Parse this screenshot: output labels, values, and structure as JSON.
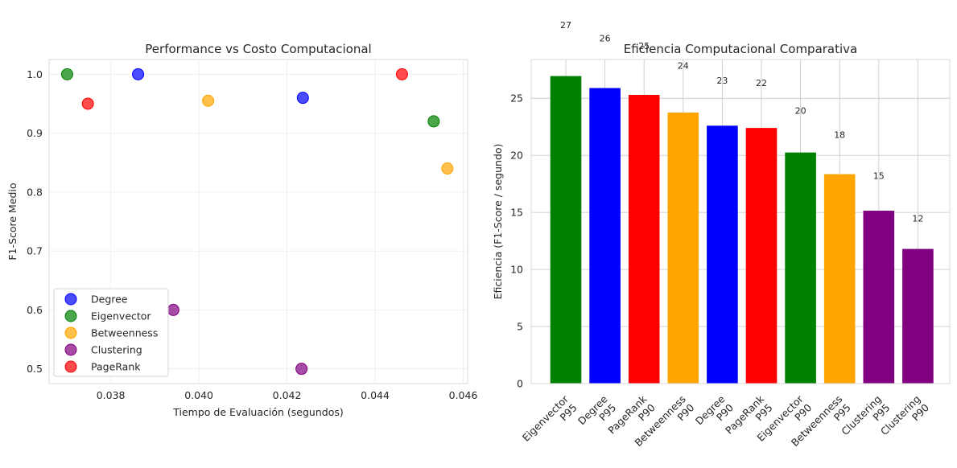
{
  "chart_data": [
    {
      "type": "scatter",
      "title": "Performance vs Costo Computacional",
      "xlabel": "Tiempo de Evaluación (segundos)",
      "ylabel": "F1-Score Medio",
      "xlim": [
        0.0366,
        0.0461
      ],
      "ylim": [
        0.475,
        1.025
      ],
      "xticks": [
        "0.038",
        "0.040",
        "0.042",
        "0.044",
        "0.046"
      ],
      "yticks": [
        "0.5",
        "0.6",
        "0.7",
        "0.8",
        "0.9",
        "1.0"
      ],
      "grid": true,
      "legend_position": "bottom-left",
      "series": [
        {
          "name": "Degree",
          "color": "#0000ff",
          "points": [
            [
              0.03862,
              1.0
            ],
            [
              0.04236,
              0.96
            ]
          ]
        },
        {
          "name": "Eigenvector",
          "color": "#008000",
          "points": [
            [
              0.03701,
              1.0
            ],
            [
              0.04533,
              0.92
            ]
          ]
        },
        {
          "name": "Betweenness",
          "color": "#ffa500",
          "points": [
            [
              0.04021,
              0.955
            ],
            [
              0.04564,
              0.84
            ]
          ]
        },
        {
          "name": "Clustering",
          "color": "#800080",
          "points": [
            [
              0.03942,
              0.6
            ],
            [
              0.04233,
              0.5
            ]
          ]
        },
        {
          "name": "PageRank",
          "color": "#ff0000",
          "points": [
            [
              0.03748,
              0.95
            ],
            [
              0.04461,
              1.0
            ]
          ]
        }
      ]
    },
    {
      "type": "bar",
      "title": "Eficiencia Computacional Comparativa",
      "xlabel": "",
      "ylabel": "Eficiencia (F1-Score / segundo)",
      "ylim": [
        0,
        28.4
      ],
      "yticks": [
        "0",
        "5",
        "10",
        "15",
        "20",
        "25"
      ],
      "grid": true,
      "categories": [
        [
          "Eigenvector",
          "P95"
        ],
        [
          "Degree",
          "P95"
        ],
        [
          "PageRank",
          "P90"
        ],
        [
          "Betweenness",
          "P90"
        ],
        [
          "Degree",
          "P90"
        ],
        [
          "PageRank",
          "P95"
        ],
        [
          "Eigenvector",
          "P90"
        ],
        [
          "Betweenness",
          "P95"
        ],
        [
          "Clustering",
          "P95"
        ],
        [
          "Clustering",
          "P90"
        ]
      ],
      "values": [
        26.95,
        25.9,
        25.3,
        23.75,
        22.6,
        22.4,
        20.25,
        18.35,
        15.15,
        11.8
      ],
      "labels": [
        "27",
        "26",
        "25",
        "24",
        "23",
        "22",
        "20",
        "18",
        "15",
        "12"
      ],
      "colors": [
        "#008000",
        "#0000ff",
        "#ff0000",
        "#ffa500",
        "#0000ff",
        "#ff0000",
        "#008000",
        "#ffa500",
        "#800080",
        "#800080"
      ]
    }
  ]
}
